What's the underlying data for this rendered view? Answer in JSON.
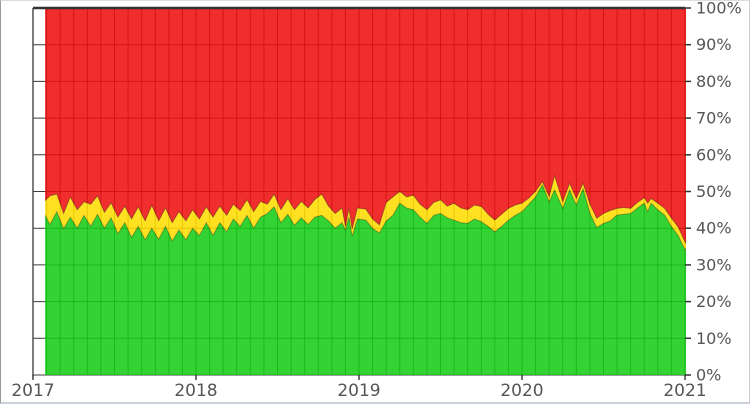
{
  "chart_data": {
    "type": "area",
    "stacking": "percent",
    "title": "",
    "xlabel": "",
    "ylabel": "",
    "x_axis": {
      "tick_labels": [
        "2017",
        "2018",
        "2019",
        "2020",
        "2021"
      ],
      "tick_values": [
        2017,
        2018,
        2019,
        2020,
        2021
      ],
      "range": [
        2017,
        2021.006
      ],
      "minor_grid": "monthly"
    },
    "y_axis": {
      "side": "right",
      "tick_labels": [
        "0%",
        "10%",
        "20%",
        "30%",
        "40%",
        "50%",
        "60%",
        "70%",
        "80%",
        "90%",
        "100%"
      ],
      "tick_values": [
        0,
        10,
        20,
        30,
        40,
        50,
        60,
        70,
        80,
        90,
        100
      ],
      "range": [
        0,
        100
      ],
      "grid": true
    },
    "legend": "none",
    "series_names": [
      "green-share",
      "yellow-share",
      "red-share"
    ],
    "colors": {
      "green": "#16cc16",
      "yellow": "#ffdd00",
      "red": "#ee0f0f",
      "grid": "#1a1a1a",
      "spine": "#333333",
      "label": "#555555",
      "fill_opacity": 0.87
    },
    "samples_format": "[year_fraction, green_pct, green_plus_yellow_pct]; red_pct = 100 - green_plus_yellow_pct",
    "samples": [
      [
        2017.074,
        43.5,
        47.5
      ],
      [
        2017.104,
        41.0,
        48.8
      ],
      [
        2017.146,
        44.5,
        49.3
      ],
      [
        2017.188,
        39.8,
        44.0
      ],
      [
        2017.229,
        43.0,
        48.5
      ],
      [
        2017.271,
        40.0,
        45.0
      ],
      [
        2017.313,
        43.5,
        47.2
      ],
      [
        2017.354,
        40.5,
        46.5
      ],
      [
        2017.396,
        43.8,
        48.8
      ],
      [
        2017.438,
        40.0,
        44.3
      ],
      [
        2017.479,
        42.8,
        46.9
      ],
      [
        2017.521,
        38.5,
        43.0
      ],
      [
        2017.563,
        41.5,
        46.0
      ],
      [
        2017.604,
        37.5,
        42.5
      ],
      [
        2017.646,
        40.5,
        45.8
      ],
      [
        2017.688,
        36.8,
        42.0
      ],
      [
        2017.729,
        40.0,
        46.2
      ],
      [
        2017.771,
        37.0,
        42.0
      ],
      [
        2017.813,
        40.5,
        45.5
      ],
      [
        2017.854,
        36.5,
        41.5
      ],
      [
        2017.896,
        39.5,
        44.5
      ],
      [
        2017.938,
        36.8,
        42.0
      ],
      [
        2017.979,
        40.0,
        45.0
      ],
      [
        2018.021,
        38.0,
        42.5
      ],
      [
        2018.063,
        41.5,
        45.8
      ],
      [
        2018.104,
        38.0,
        43.0
      ],
      [
        2018.146,
        41.5,
        46.0
      ],
      [
        2018.188,
        39.0,
        43.5
      ],
      [
        2018.229,
        42.5,
        46.5
      ],
      [
        2018.271,
        40.5,
        44.8
      ],
      [
        2018.313,
        43.5,
        47.8
      ],
      [
        2018.354,
        40.0,
        44.5
      ],
      [
        2018.396,
        43.0,
        47.3
      ],
      [
        2018.438,
        44.0,
        46.5
      ],
      [
        2018.479,
        45.8,
        49.3
      ],
      [
        2018.521,
        41.5,
        45.0
      ],
      [
        2018.563,
        43.8,
        48.0
      ],
      [
        2018.604,
        40.8,
        45.0
      ],
      [
        2018.646,
        42.8,
        47.3
      ],
      [
        2018.688,
        41.0,
        45.5
      ],
      [
        2018.729,
        43.0,
        47.8
      ],
      [
        2018.771,
        43.5,
        49.3
      ],
      [
        2018.813,
        42.0,
        46.0
      ],
      [
        2018.854,
        40.0,
        44.0
      ],
      [
        2018.896,
        41.5,
        45.5
      ],
      [
        2018.917,
        39.5,
        40.5
      ],
      [
        2018.938,
        43.0,
        45.3
      ],
      [
        2018.958,
        37.8,
        39.8
      ],
      [
        2018.99,
        42.5,
        45.5
      ],
      [
        2019.042,
        42.2,
        45.2
      ],
      [
        2019.083,
        40.0,
        42.5
      ],
      [
        2019.125,
        38.7,
        40.9
      ],
      [
        2019.167,
        42.0,
        47.0
      ],
      [
        2019.208,
        43.5,
        48.5
      ],
      [
        2019.25,
        46.8,
        50.0
      ],
      [
        2019.292,
        45.5,
        48.5
      ],
      [
        2019.333,
        45.0,
        49.0
      ],
      [
        2019.375,
        43.0,
        46.5
      ],
      [
        2019.417,
        41.3,
        45.0
      ],
      [
        2019.458,
        43.5,
        47.0
      ],
      [
        2019.5,
        44.0,
        47.7
      ],
      [
        2019.542,
        42.8,
        46.0
      ],
      [
        2019.583,
        42.2,
        46.8
      ],
      [
        2019.625,
        41.5,
        45.5
      ],
      [
        2019.667,
        41.3,
        45.0
      ],
      [
        2019.708,
        42.5,
        46.3
      ],
      [
        2019.75,
        41.8,
        45.9
      ],
      [
        2019.792,
        40.5,
        43.8
      ],
      [
        2019.833,
        39.0,
        42.2
      ],
      [
        2019.875,
        40.5,
        43.8
      ],
      [
        2019.917,
        42.2,
        45.4
      ],
      [
        2019.958,
        43.5,
        46.3
      ],
      [
        2020.0,
        44.5,
        46.8
      ],
      [
        2020.042,
        46.5,
        48.2
      ],
      [
        2020.083,
        48.5,
        50.0
      ],
      [
        2020.125,
        51.8,
        52.7
      ],
      [
        2020.167,
        47.2,
        48.6
      ],
      [
        2020.2,
        50.4,
        54.3
      ],
      [
        2020.25,
        45.4,
        47.2
      ],
      [
        2020.292,
        50.4,
        52.2
      ],
      [
        2020.333,
        46.3,
        48.1
      ],
      [
        2020.375,
        50.8,
        52.2
      ],
      [
        2020.417,
        44.0,
        46.5
      ],
      [
        2020.458,
        40.2,
        42.7
      ],
      [
        2020.5,
        41.3,
        44.0
      ],
      [
        2020.542,
        42.0,
        44.8
      ],
      [
        2020.583,
        43.6,
        45.4
      ],
      [
        2020.625,
        43.8,
        45.6
      ],
      [
        2020.667,
        44.0,
        45.4
      ],
      [
        2020.708,
        45.5,
        47.0
      ],
      [
        2020.75,
        46.8,
        48.3
      ],
      [
        2020.771,
        44.5,
        46.8
      ],
      [
        2020.792,
        46.8,
        48.1
      ],
      [
        2020.833,
        45.0,
        46.8
      ],
      [
        2020.875,
        43.6,
        45.4
      ],
      [
        2020.917,
        40.4,
        42.7
      ],
      [
        2020.958,
        38.0,
        40.3
      ],
      [
        2020.99,
        35.0,
        37.2
      ],
      [
        2021.006,
        34.0,
        35.8
      ]
    ]
  }
}
